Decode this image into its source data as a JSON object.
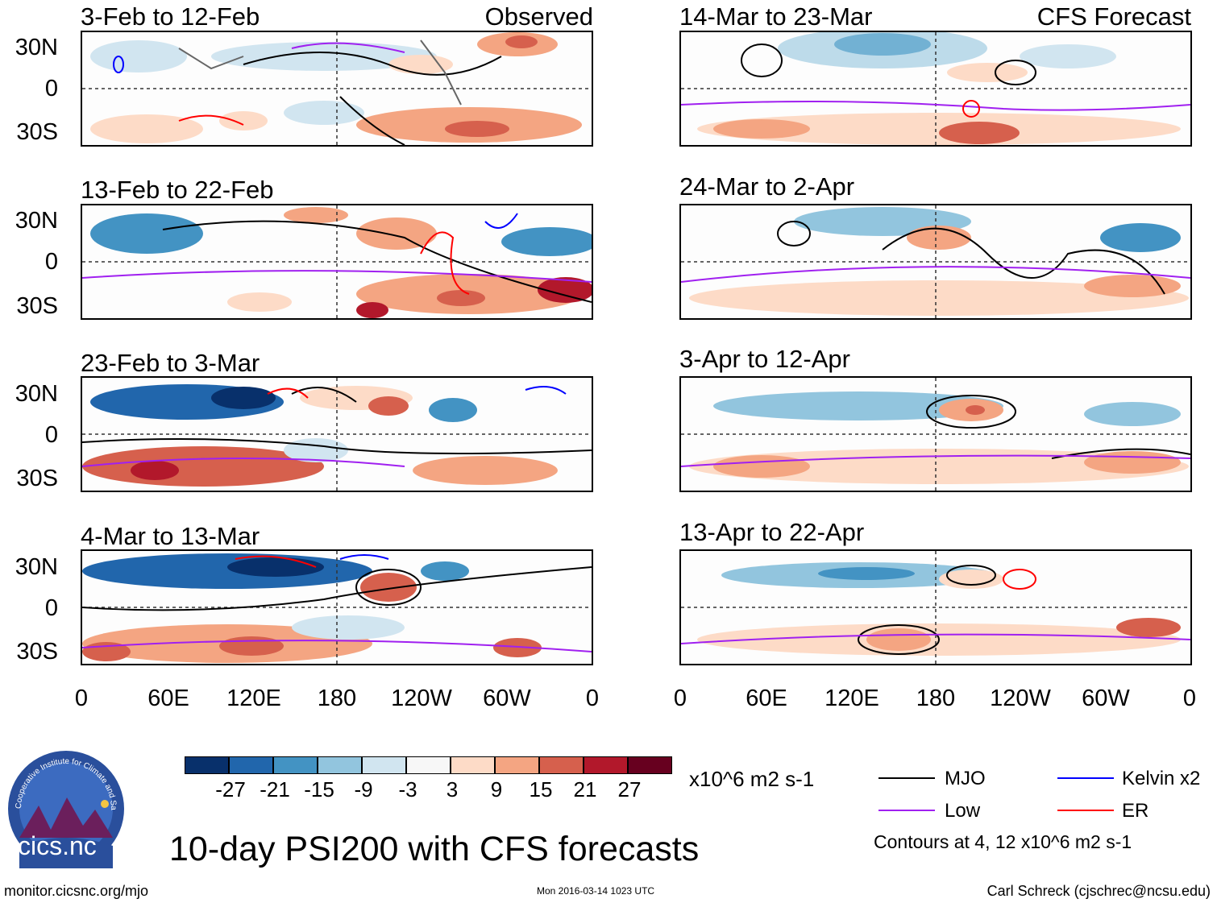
{
  "panels": [
    {
      "label": "3-Feb to 12-Feb",
      "tag": "Observed"
    },
    {
      "label": "14-Mar to 23-Mar",
      "tag": "CFS Forecast"
    },
    {
      "label": "13-Feb to 22-Feb",
      "tag": ""
    },
    {
      "label": "24-Mar to 2-Apr",
      "tag": ""
    },
    {
      "label": "23-Feb to 3-Mar",
      "tag": ""
    },
    {
      "label": "3-Apr to 12-Apr",
      "tag": ""
    },
    {
      "label": "4-Mar to 13-Mar",
      "tag": ""
    },
    {
      "label": "13-Apr to 22-Apr",
      "tag": ""
    }
  ],
  "lat_labels": [
    "30N",
    "0",
    "30S"
  ],
  "lon_labels": [
    "0",
    "60E",
    "120E",
    "180",
    "120W",
    "60W",
    "0"
  ],
  "colorbar": {
    "units": "x10^6 m2 s-1",
    "labels": [
      "-27",
      "-21",
      "-15",
      "-9",
      "-3",
      "3",
      "9",
      "15",
      "21",
      "27"
    ],
    "colors": [
      "#08306b",
      "#2166ac",
      "#4393c3",
      "#92c5de",
      "#d1e5f0",
      "#f7f7f7",
      "#fddbc7",
      "#f4a582",
      "#d6604d",
      "#b2182b",
      "#67001f"
    ]
  },
  "legend": {
    "items": [
      {
        "label": "MJO",
        "color": "#000000"
      },
      {
        "label": "Kelvin x2",
        "color": "#0000ff"
      },
      {
        "label": "Low",
        "color": "#a020f0"
      },
      {
        "label": "ER",
        "color": "#ff0000"
      }
    ],
    "note": "Contours at 4, 12 x10^6 m2 s-1"
  },
  "title": "10-day PSI200 with CFS forecasts",
  "logo_text": "cics.nc",
  "logo_ring_text": "Cooperative Institute for Climate and Satellites",
  "footer": {
    "url": "monitor.cicsnc.org/mjo",
    "timestamp": "Mon 2016-03-14 1023 UTC",
    "author": "Carl Schreck (cjschrec@ncsu.edu)"
  }
}
